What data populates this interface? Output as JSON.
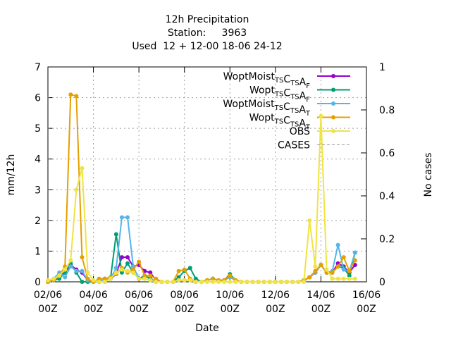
{
  "chart_data": {
    "type": "line",
    "title": "12h Precipitation",
    "subtitle": [
      "Station:     3963",
      "Used  12 + 12-00 18-06 24-12"
    ],
    "x_label": "Date",
    "y_label": "mm/12h",
    "y2_label": "No cases",
    "categories": [
      "02/06\n00Z",
      null,
      null,
      null,
      null,
      null,
      null,
      null,
      "04/06\n00Z",
      null,
      null,
      null,
      null,
      null,
      null,
      null,
      "06/06\n00Z",
      null,
      null,
      null,
      null,
      null,
      null,
      null,
      "08/06\n00Z",
      null,
      null,
      null,
      null,
      null,
      null,
      null,
      "10/06\n00Z",
      null,
      null,
      null,
      null,
      null,
      null,
      null,
      "12/06\n00Z",
      null,
      null,
      null,
      null,
      null,
      null,
      null,
      "14/06\n00Z",
      null,
      null,
      null,
      null,
      null,
      null,
      null,
      "16/06\n00Z"
    ],
    "ylim": [
      0,
      7
    ],
    "yticks": [
      0,
      1,
      2,
      3,
      4,
      5,
      6,
      7
    ],
    "y2lim": [
      0,
      1
    ],
    "y2ticks": [
      0,
      0.2,
      0.4,
      0.6,
      0.8,
      1
    ],
    "grid": true,
    "legend": "top-right",
    "series": [
      {
        "name": "WoptMoist_{TS}C_{TS}A_{F}",
        "color": "#9400d3",
        "values": [
          0,
          0.05,
          0.2,
          0.3,
          0.55,
          0.4,
          0.3,
          0.05,
          0,
          0,
          0.1,
          0.1,
          0.25,
          0.8,
          0.8,
          0.5,
          0.55,
          0.35,
          0.3,
          0.05,
          0,
          0,
          0,
          0.05,
          0.05,
          0.05,
          0,
          0,
          0.05,
          0.1,
          0.05,
          0.05,
          0.2,
          0.05,
          0,
          0,
          0,
          0,
          0,
          0,
          0,
          0,
          0,
          0,
          0,
          0.05,
          0.15,
          0.3,
          0.55,
          0.3,
          0.3,
          0.6,
          0.5,
          0.3,
          0.55,
          null,
          null
        ]
      },
      {
        "name": "Wopt_{TS}C_{TS}A_{F}",
        "color": "#009e73",
        "values": [
          0,
          0.05,
          0.1,
          0.3,
          0.6,
          0.3,
          0,
          0,
          0,
          0,
          0,
          0.1,
          1.55,
          0.3,
          0.6,
          0.3,
          0.1,
          0.2,
          0.1,
          0,
          0,
          0,
          0,
          0.15,
          0.35,
          0.45,
          0.1,
          0,
          0.05,
          0.1,
          0.05,
          0.05,
          0.25,
          0.05,
          0,
          0,
          0,
          0,
          0,
          0,
          0,
          0,
          0,
          0,
          0,
          0.05,
          0.15,
          0.3,
          0.55,
          0.3,
          0.3,
          0.5,
          0.45,
          0.2,
          0.95,
          null,
          null
        ]
      },
      {
        "name": "WoptMoist_{TS}C_{TS}A_{T}",
        "color": "#56b4e9",
        "values": [
          0,
          0.1,
          0.3,
          0.15,
          0.5,
          0.35,
          0.35,
          0.05,
          0,
          0,
          0.1,
          0.1,
          0.45,
          2.1,
          2.1,
          0.5,
          0.1,
          0.1,
          0.05,
          0,
          0,
          0,
          0,
          0.05,
          0.05,
          0.05,
          0,
          0,
          0.05,
          0.1,
          0.05,
          0.05,
          0.15,
          0.05,
          0,
          0,
          0,
          0,
          0,
          0,
          0,
          0,
          0,
          0,
          0,
          0.05,
          0.15,
          0.3,
          0.55,
          0.3,
          0.35,
          1.2,
          0.4,
          0.35,
          0.95,
          null,
          null
        ]
      },
      {
        "name": "Wopt_{TS}C_{TS}A_{T}",
        "color": "#e69f00",
        "values": [
          0,
          0.05,
          0.2,
          0.5,
          6.1,
          6.05,
          0.8,
          0.1,
          0,
          0.1,
          0.1,
          0.15,
          0.25,
          0.45,
          0.3,
          0.4,
          0.65,
          0.2,
          0.2,
          0.1,
          0,
          0,
          0,
          0.35,
          0.4,
          0.1,
          0,
          0,
          0.05,
          0.1,
          0.05,
          0.05,
          0.2,
          0.05,
          0,
          0,
          0,
          0,
          0,
          0,
          0,
          0,
          0,
          0,
          0,
          0.05,
          0.15,
          0.35,
          0.55,
          0.3,
          0.3,
          0.5,
          0.8,
          0.35,
          0.7,
          null,
          null
        ]
      },
      {
        "name": "OBS",
        "color": "#f0e442",
        "values": [
          0.05,
          0.1,
          0.2,
          0.4,
          0.7,
          3.0,
          3.7,
          0.3,
          0.05,
          0,
          0,
          0.1,
          0.3,
          0.4,
          0.35,
          0.3,
          0.1,
          0.1,
          0.05,
          0,
          0,
          0,
          0,
          0.05,
          0.05,
          0.05,
          0,
          0,
          0,
          0,
          0,
          0,
          0,
          0,
          0,
          0,
          0,
          0,
          0,
          0,
          0,
          0,
          0,
          0,
          0,
          0,
          2.0,
          0.5,
          5.4,
          0.4,
          0.1,
          0.1,
          0.1,
          0.1,
          0.1,
          null,
          null
        ]
      },
      {
        "name": "CASES",
        "color": "#a0a0a0",
        "axis": "y2",
        "dashed": true,
        "values": [
          null,
          null,
          null,
          null,
          null,
          null,
          null,
          null,
          null,
          null,
          null,
          null,
          null,
          null,
          null,
          null,
          null,
          null,
          null,
          null,
          null,
          null,
          null,
          null,
          null,
          null,
          null,
          null,
          null,
          null,
          null,
          null,
          null,
          null,
          null,
          null,
          null,
          null,
          null,
          null,
          null,
          null,
          null,
          null,
          null,
          null,
          null,
          null,
          null,
          null,
          null,
          null,
          null,
          null,
          null,
          null,
          null
        ]
      }
    ]
  }
}
